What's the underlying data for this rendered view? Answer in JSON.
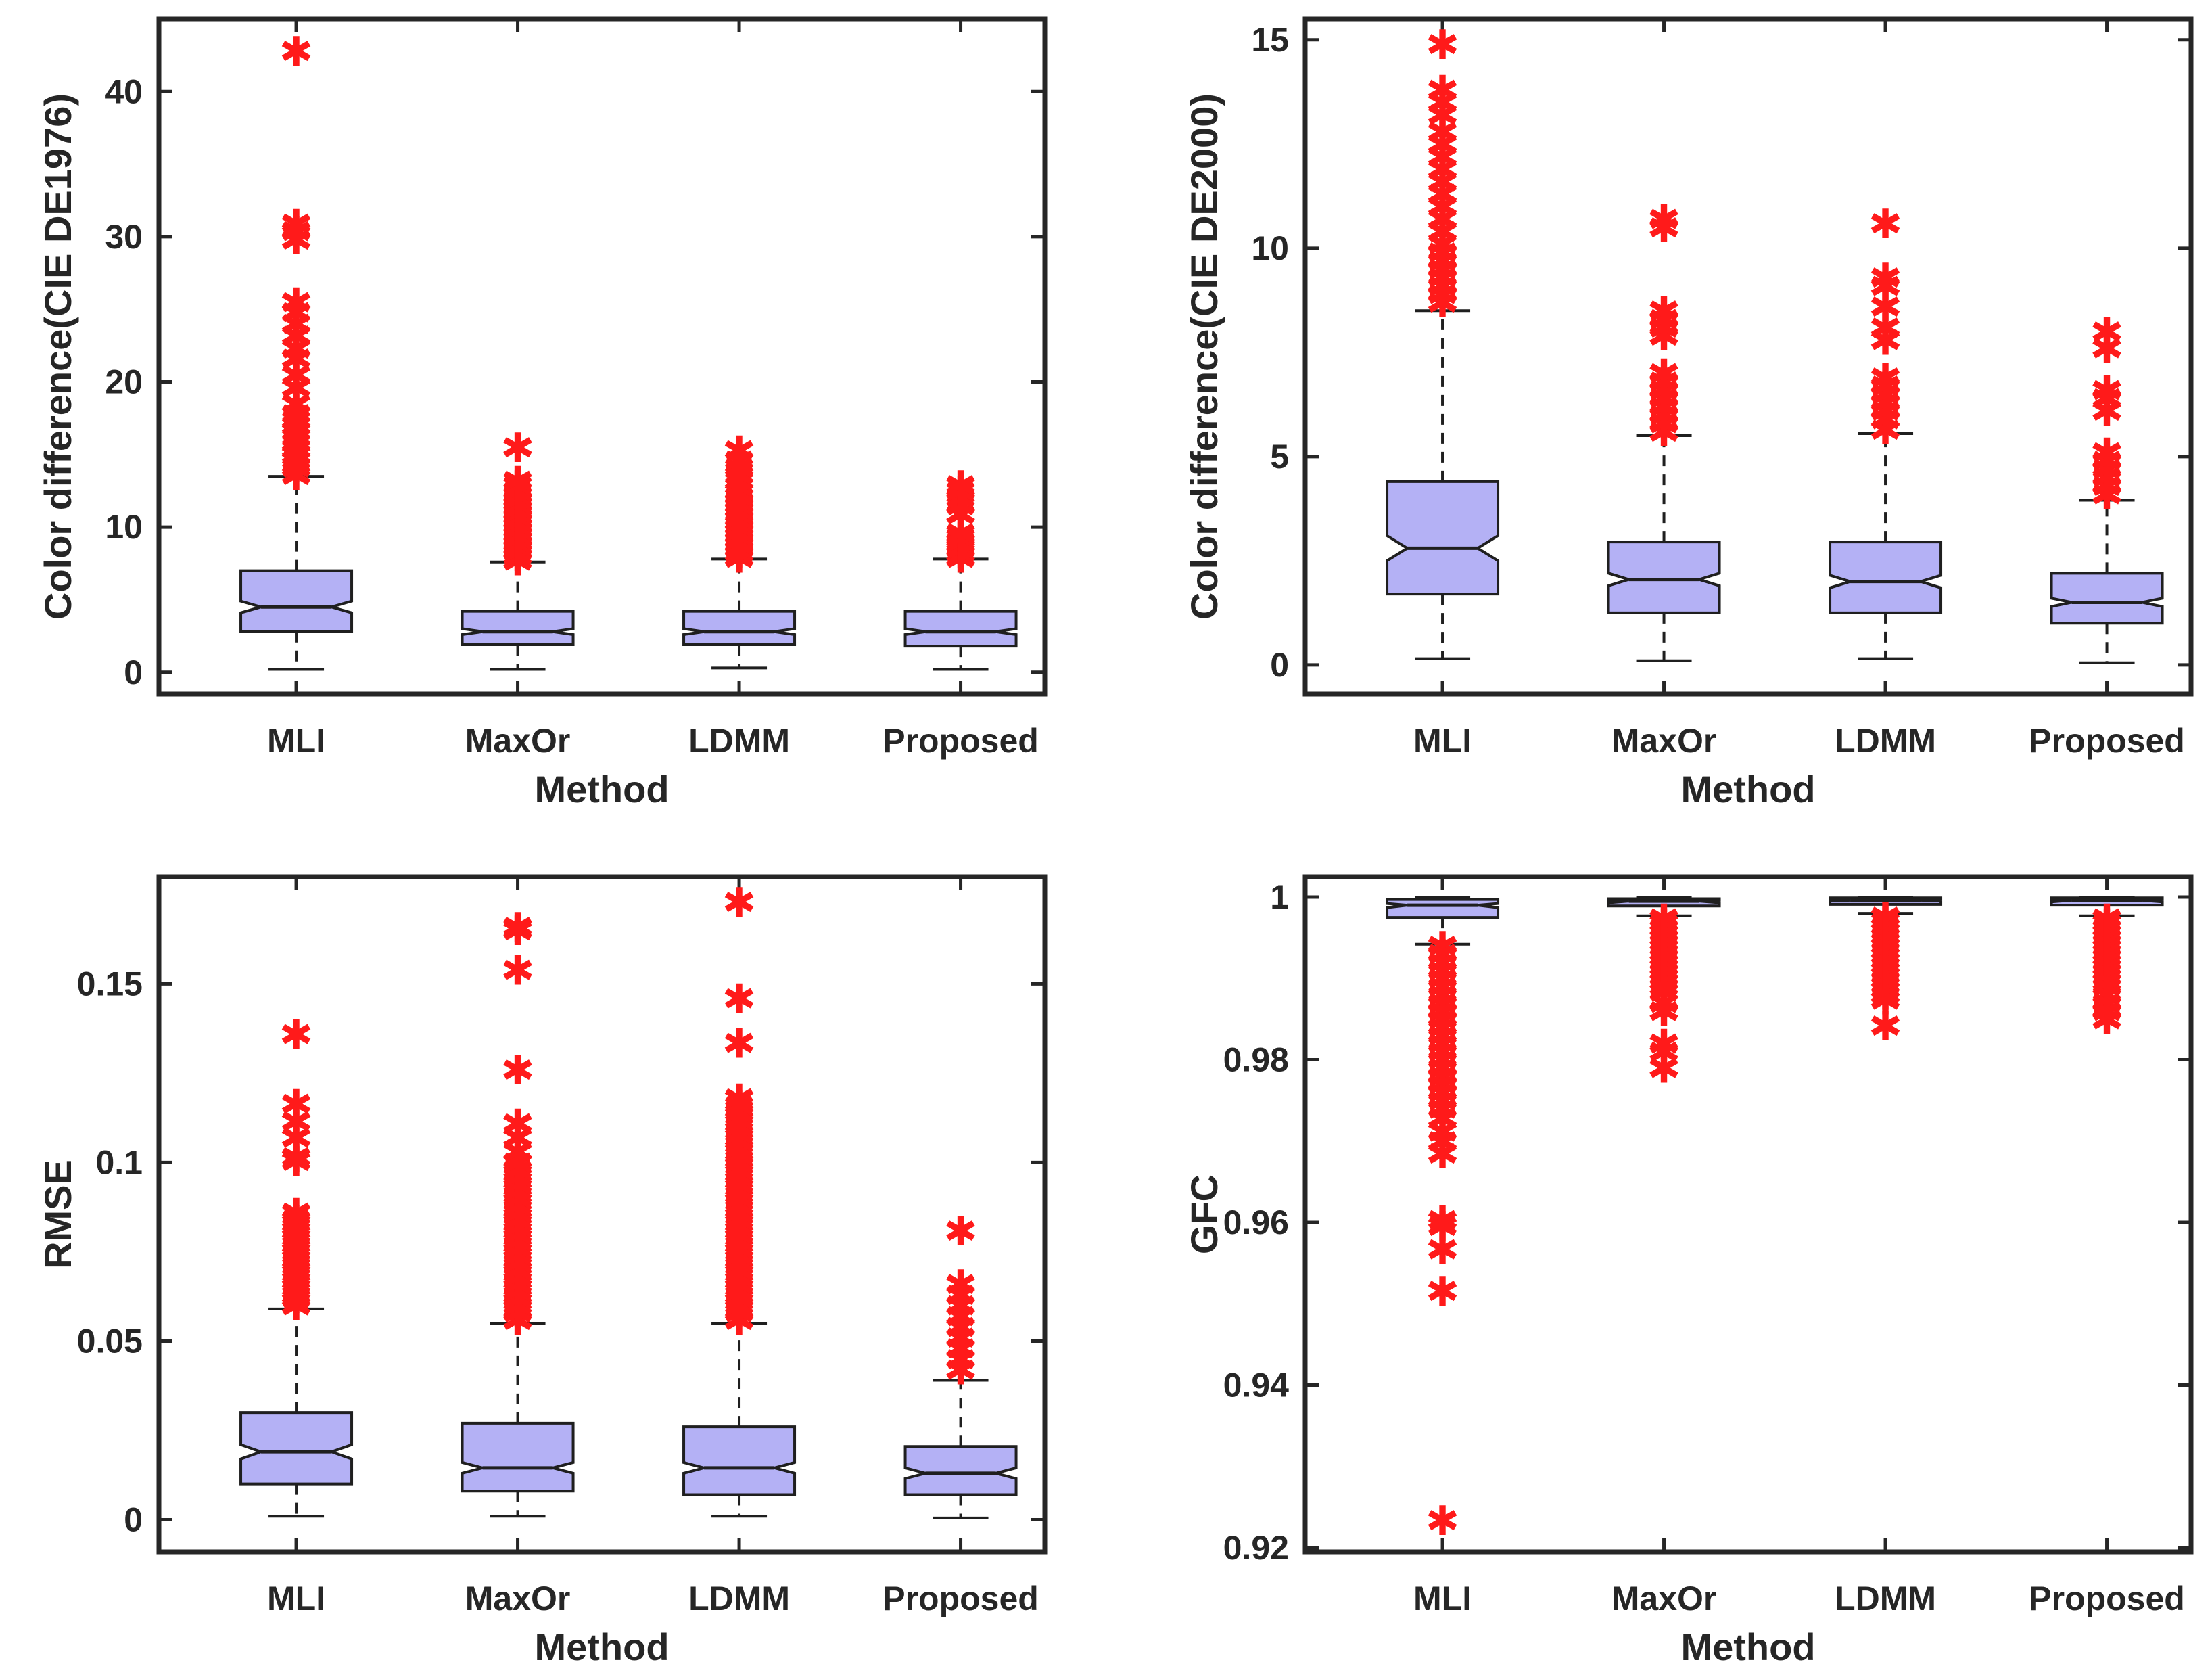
{
  "colors": {
    "box_fill": "#b4b1f5",
    "box_edge": "#1f1f1f",
    "median": "#1f1f1f",
    "whisker": "#1f1f1f",
    "outlier": "#ff1a1a",
    "axes": "#262626"
  },
  "chart_data": [
    {
      "type": "boxplot",
      "notched": true,
      "title": "",
      "xlabel": "Method",
      "ylabel": "Color difference(CIE DE1976)",
      "categories": [
        "MLI",
        "MaxOr",
        "LDMM",
        "Proposed"
      ],
      "ylim": [
        -1.5,
        45
      ],
      "yticks": [
        0,
        10,
        20,
        30,
        40
      ],
      "ytick_labels": [
        "0",
        "10",
        "20",
        "30",
        "40"
      ],
      "boxes": [
        {
          "category": "MLI",
          "whisker_low": 0.2,
          "q1": 2.8,
          "median": 4.5,
          "q3": 7.0,
          "whisker_high": 13.5,
          "notch": [
            4.1,
            4.9
          ],
          "outliers": [
            13.6,
            14.1,
            14.6,
            15.0,
            15.4,
            15.8,
            16.2,
            16.6,
            17.0,
            17.4,
            17.8,
            18.5,
            19.6,
            20.5,
            21.6,
            22.3,
            23.2,
            24.0,
            24.8,
            25.5,
            29.8,
            30.4,
            30.9,
            42.8
          ]
        },
        {
          "category": "MaxOr",
          "whisker_low": 0.2,
          "q1": 1.9,
          "median": 2.8,
          "q3": 4.2,
          "whisker_high": 7.6,
          "notch": [
            2.6,
            3.0
          ],
          "outliers": [
            7.7,
            8.0,
            8.3,
            8.6,
            8.9,
            9.2,
            9.5,
            9.8,
            10.1,
            10.4,
            10.7,
            11.0,
            11.3,
            11.6,
            11.9,
            12.2,
            12.5,
            12.9,
            13.2,
            15.5
          ]
        },
        {
          "category": "LDMM",
          "whisker_low": 0.3,
          "q1": 1.9,
          "median": 2.8,
          "q3": 4.2,
          "whisker_high": 7.8,
          "notch": [
            2.6,
            3.0
          ],
          "outliers": [
            7.9,
            8.2,
            8.5,
            8.8,
            9.1,
            9.4,
            9.7,
            10.0,
            10.3,
            10.6,
            10.9,
            11.2,
            11.5,
            11.8,
            12.1,
            12.4,
            12.8,
            13.2,
            13.6,
            14.1,
            14.6,
            15.3
          ]
        },
        {
          "category": "Proposed",
          "whisker_low": 0.2,
          "q1": 1.8,
          "median": 2.8,
          "q3": 4.2,
          "whisker_high": 7.8,
          "notch": [
            2.6,
            3.0
          ],
          "outliers": [
            7.9,
            8.2,
            8.5,
            8.8,
            9.0,
            9.3,
            9.6,
            10.9,
            11.5,
            12.0,
            12.5,
            12.9
          ]
        }
      ]
    },
    {
      "type": "boxplot",
      "notched": true,
      "title": "",
      "xlabel": "Method",
      "ylabel": "Color difference(CIE DE2000)",
      "categories": [
        "MLI",
        "MaxOr",
        "LDMM",
        "Proposed"
      ],
      "ylim": [
        -0.7,
        15.5
      ],
      "yticks": [
        0,
        5,
        10,
        15
      ],
      "ytick_labels": [
        "0",
        "5",
        "10",
        "15"
      ],
      "boxes": [
        {
          "category": "MLI",
          "whisker_low": 0.15,
          "q1": 1.7,
          "median": 2.8,
          "q3": 4.4,
          "whisker_high": 8.5,
          "notch": [
            2.5,
            3.1
          ],
          "outliers": [
            8.7,
            8.9,
            9.1,
            9.3,
            9.5,
            9.7,
            9.9,
            10.1,
            10.4,
            10.7,
            11.0,
            11.3,
            11.6,
            11.9,
            12.2,
            12.5,
            12.8,
            13.2,
            13.5,
            13.8,
            14.9
          ]
        },
        {
          "category": "MaxOr",
          "whisker_low": 0.1,
          "q1": 1.25,
          "median": 2.05,
          "q3": 2.95,
          "whisker_high": 5.5,
          "notch": [
            1.9,
            2.2
          ],
          "outliers": [
            5.6,
            5.8,
            6.0,
            6.2,
            6.4,
            6.6,
            6.8,
            7.0,
            7.9,
            8.1,
            8.3,
            8.5,
            10.5,
            10.7
          ]
        },
        {
          "category": "LDMM",
          "whisker_low": 0.15,
          "q1": 1.25,
          "median": 2.0,
          "q3": 2.95,
          "whisker_high": 5.55,
          "notch": [
            1.85,
            2.15
          ],
          "outliers": [
            5.65,
            5.9,
            6.1,
            6.3,
            6.5,
            6.7,
            6.9,
            7.8,
            8.1,
            8.6,
            9.1,
            9.3,
            10.6
          ]
        },
        {
          "category": "Proposed",
          "whisker_low": 0.05,
          "q1": 1.0,
          "median": 1.5,
          "q3": 2.2,
          "whisker_high": 3.95,
          "notch": [
            1.4,
            1.6
          ],
          "outliers": [
            4.1,
            4.3,
            4.5,
            4.7,
            4.9,
            5.1,
            6.1,
            6.4,
            6.6,
            7.6,
            8.0
          ]
        }
      ]
    },
    {
      "type": "boxplot",
      "notched": true,
      "title": "",
      "xlabel": "Method",
      "ylabel": "RMSE",
      "categories": [
        "MLI",
        "MaxOr",
        "LDMM",
        "Proposed"
      ],
      "ylim": [
        -0.009,
        0.18
      ],
      "yticks": [
        0,
        0.05,
        0.1,
        0.15
      ],
      "ytick_labels": [
        "0",
        "0.05",
        "0.1",
        "0.15"
      ],
      "boxes": [
        {
          "category": "MLI",
          "whisker_low": 0.001,
          "q1": 0.01,
          "median": 0.019,
          "q3": 0.03,
          "whisker_high": 0.059,
          "notch": [
            0.017,
            0.021
          ],
          "outliers": [
            0.06,
            0.062,
            0.064,
            0.066,
            0.068,
            0.07,
            0.072,
            0.074,
            0.076,
            0.078,
            0.08,
            0.082,
            0.084,
            0.086,
            0.1005,
            0.1015,
            0.107,
            0.1115,
            0.1165,
            0.136
          ]
        },
        {
          "category": "MaxOr",
          "whisker_low": 0.001,
          "q1": 0.008,
          "median": 0.0145,
          "q3": 0.027,
          "whisker_high": 0.055,
          "notch": [
            0.013,
            0.016
          ],
          "outliers": [
            0.056,
            0.058,
            0.06,
            0.062,
            0.064,
            0.066,
            0.068,
            0.07,
            0.072,
            0.074,
            0.076,
            0.078,
            0.08,
            0.082,
            0.084,
            0.086,
            0.088,
            0.09,
            0.092,
            0.094,
            0.096,
            0.098,
            0.1,
            0.103,
            0.107,
            0.111,
            0.126,
            0.154,
            0.165,
            0.166
          ]
        },
        {
          "category": "LDMM",
          "whisker_low": 0.001,
          "q1": 0.007,
          "median": 0.0145,
          "q3": 0.026,
          "whisker_high": 0.055,
          "notch": [
            0.013,
            0.016
          ],
          "outliers": [
            0.056,
            0.058,
            0.06,
            0.062,
            0.064,
            0.066,
            0.068,
            0.07,
            0.072,
            0.074,
            0.076,
            0.078,
            0.08,
            0.082,
            0.084,
            0.086,
            0.088,
            0.09,
            0.092,
            0.094,
            0.096,
            0.098,
            0.1,
            0.102,
            0.104,
            0.106,
            0.108,
            0.11,
            0.112,
            0.114,
            0.116,
            0.118,
            0.1335,
            0.146,
            0.173
          ]
        },
        {
          "category": "Proposed",
          "whisker_low": 0.0005,
          "q1": 0.007,
          "median": 0.013,
          "q3": 0.0205,
          "whisker_high": 0.039,
          "notch": [
            0.0115,
            0.0145
          ],
          "outliers": [
            0.042,
            0.045,
            0.048,
            0.051,
            0.054,
            0.057,
            0.06,
            0.063,
            0.066,
            0.081
          ]
        }
      ]
    },
    {
      "type": "boxplot",
      "notched": true,
      "title": "",
      "xlabel": "Method",
      "ylabel": "GFC",
      "categories": [
        "MLI",
        "MaxOr",
        "LDMM",
        "Proposed"
      ],
      "ylim": [
        0.9195,
        1.0025
      ],
      "yticks": [
        0.92,
        0.94,
        0.96,
        0.98,
        1
      ],
      "ytick_labels": [
        "0.92",
        "0.94",
        "0.96",
        "0.98",
        "1"
      ],
      "boxes": [
        {
          "category": "MLI",
          "whisker_low": 0.9942,
          "q1": 0.9975,
          "median": 0.999,
          "q3": 0.9997,
          "whisker_high": 1.0,
          "notch": [
            0.9987,
            0.9992
          ],
          "outliers": [
            0.994,
            0.993,
            0.992,
            0.991,
            0.99,
            0.989,
            0.988,
            0.987,
            0.986,
            0.985,
            0.984,
            0.983,
            0.982,
            0.981,
            0.98,
            0.979,
            0.978,
            0.977,
            0.976,
            0.975,
            0.974,
            0.9728,
            0.9712,
            0.97,
            0.9685,
            0.9603,
            0.9596,
            0.9567,
            0.9516,
            0.9234
          ]
        },
        {
          "category": "MaxOr",
          "whisker_low": 0.9977,
          "q1": 0.9989,
          "median": 0.9995,
          "q3": 0.9998,
          "whisker_high": 1.0,
          "notch": [
            0.9993,
            0.9996
          ],
          "outliers": [
            0.9974,
            0.9968,
            0.9962,
            0.9956,
            0.995,
            0.9944,
            0.9938,
            0.9932,
            0.9926,
            0.992,
            0.9914,
            0.9908,
            0.9902,
            0.9896,
            0.989,
            0.9884,
            0.987,
            0.986,
            0.982,
            0.981,
            0.979
          ]
        },
        {
          "category": "LDMM",
          "whisker_low": 0.998,
          "q1": 0.9991,
          "median": 0.9996,
          "q3": 0.9999,
          "whisker_high": 1.0,
          "notch": [
            0.9995,
            0.9997
          ],
          "outliers": [
            0.9976,
            0.997,
            0.9964,
            0.9958,
            0.9952,
            0.9946,
            0.994,
            0.9934,
            0.9928,
            0.9922,
            0.9916,
            0.991,
            0.9904,
            0.9898,
            0.9892,
            0.9886,
            0.988,
            0.9874,
            0.9842
          ]
        },
        {
          "category": "Proposed",
          "whisker_low": 0.9977,
          "q1": 0.999,
          "median": 0.9996,
          "q3": 0.9999,
          "whisker_high": 1.0,
          "notch": [
            0.9994,
            0.9997
          ],
          "outliers": [
            0.9974,
            0.9968,
            0.9962,
            0.9956,
            0.995,
            0.9944,
            0.9938,
            0.9932,
            0.9926,
            0.992,
            0.9914,
            0.9908,
            0.9902,
            0.9896,
            0.989,
            0.988,
            0.987,
            0.986,
            0.985
          ]
        }
      ]
    }
  ]
}
